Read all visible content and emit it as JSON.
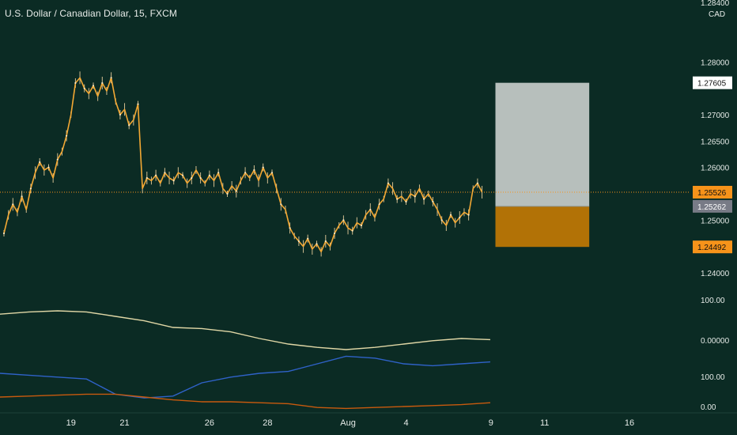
{
  "chart_data": {
    "type": "line",
    "title": "U.S. Dollar / Canadian Dollar, 15, FXCM",
    "currency": "CAD",
    "y_ticks": [
      "1.28000",
      "1.27000",
      "1.26500",
      "1.26000",
      "1.25000",
      "1.24000"
    ],
    "y_top_partial": "1.28400",
    "ylim": [
      1.237,
      1.285
    ],
    "x_ticks": [
      {
        "label": "19",
        "i": 15
      },
      {
        "label": "21",
        "i": 27
      },
      {
        "label": "26",
        "i": 46
      },
      {
        "label": "28",
        "i": 59
      },
      {
        "label": "Aug",
        "i": 77
      },
      {
        "label": "4",
        "i": 90
      },
      {
        "label": "9",
        "i": 109
      },
      {
        "label": "11",
        "i": 121
      },
      {
        "label": "16",
        "i": 140
      }
    ],
    "price_series": [
      1.2475,
      1.251,
      1.253,
      1.2515,
      1.2545,
      1.252,
      1.256,
      1.259,
      1.261,
      1.2595,
      1.26,
      1.258,
      1.2615,
      1.263,
      1.266,
      1.27,
      1.276,
      1.277,
      1.275,
      1.274,
      1.2755,
      1.2735,
      1.276,
      1.2745,
      1.277,
      1.2725,
      1.27,
      1.271,
      1.268,
      1.269,
      1.272,
      1.256,
      1.258,
      1.2575,
      1.2585,
      1.257,
      1.259,
      1.258,
      1.2575,
      1.259,
      1.2585,
      1.257,
      1.258,
      1.2595,
      1.258,
      1.257,
      1.2585,
      1.2575,
      1.259,
      1.256,
      1.255,
      1.2565,
      1.2555,
      1.2575,
      1.259,
      1.258,
      1.2595,
      1.2575,
      1.26,
      1.258,
      1.259,
      1.256,
      1.253,
      1.252,
      1.2485,
      1.247,
      1.246,
      1.245,
      1.2465,
      1.2445,
      1.2455,
      1.244,
      1.246,
      1.245,
      1.2475,
      1.249,
      1.25,
      1.2485,
      1.248,
      1.2495,
      1.249,
      1.251,
      1.252,
      1.2505,
      1.253,
      1.254,
      1.257,
      1.256,
      1.254,
      1.2545,
      1.2535,
      1.255,
      1.2545,
      1.256,
      1.254,
      1.255,
      1.2535,
      1.252,
      1.25,
      1.249,
      1.251,
      1.2495,
      1.2505,
      1.2515,
      1.251,
      1.256,
      1.257,
      1.2553
    ],
    "last_price_label": "1.25526",
    "position": {
      "target": 1.27605,
      "target_label": "1.27605",
      "entry": 1.25262,
      "entry_label": "1.25262",
      "stop": 1.24492,
      "stop_label": "1.24492",
      "start_i": 110,
      "end_i": 131
    },
    "indicators": {
      "tick_labels": [
        "100.00",
        "0.00000",
        "100.00",
        "0.00"
      ],
      "yellow": [
        52,
        54,
        55,
        54,
        50,
        46,
        40,
        39,
        36,
        30,
        25,
        22,
        20,
        22,
        25,
        28,
        30,
        29
      ],
      "blue": [
        40,
        38,
        36,
        34,
        18,
        14,
        16,
        30,
        36,
        40,
        42,
        50,
        58,
        56,
        50,
        48,
        50,
        52
      ],
      "orange": [
        30,
        32,
        34,
        36,
        36,
        30,
        24,
        20,
        20,
        18,
        16,
        8,
        6,
        8,
        10,
        12,
        14,
        18
      ]
    },
    "colors": {
      "background": "#0b2b24",
      "price": "#f3a833",
      "target_zone": "#b7bfbc",
      "stop_zone": "#b27206",
      "last_tag": "#f7931a",
      "entry_tag": "#787b86",
      "indicator_yellow": "#e0d7a6",
      "indicator_blue": "#2f62c8",
      "indicator_orange": "#c85a0e"
    }
  }
}
